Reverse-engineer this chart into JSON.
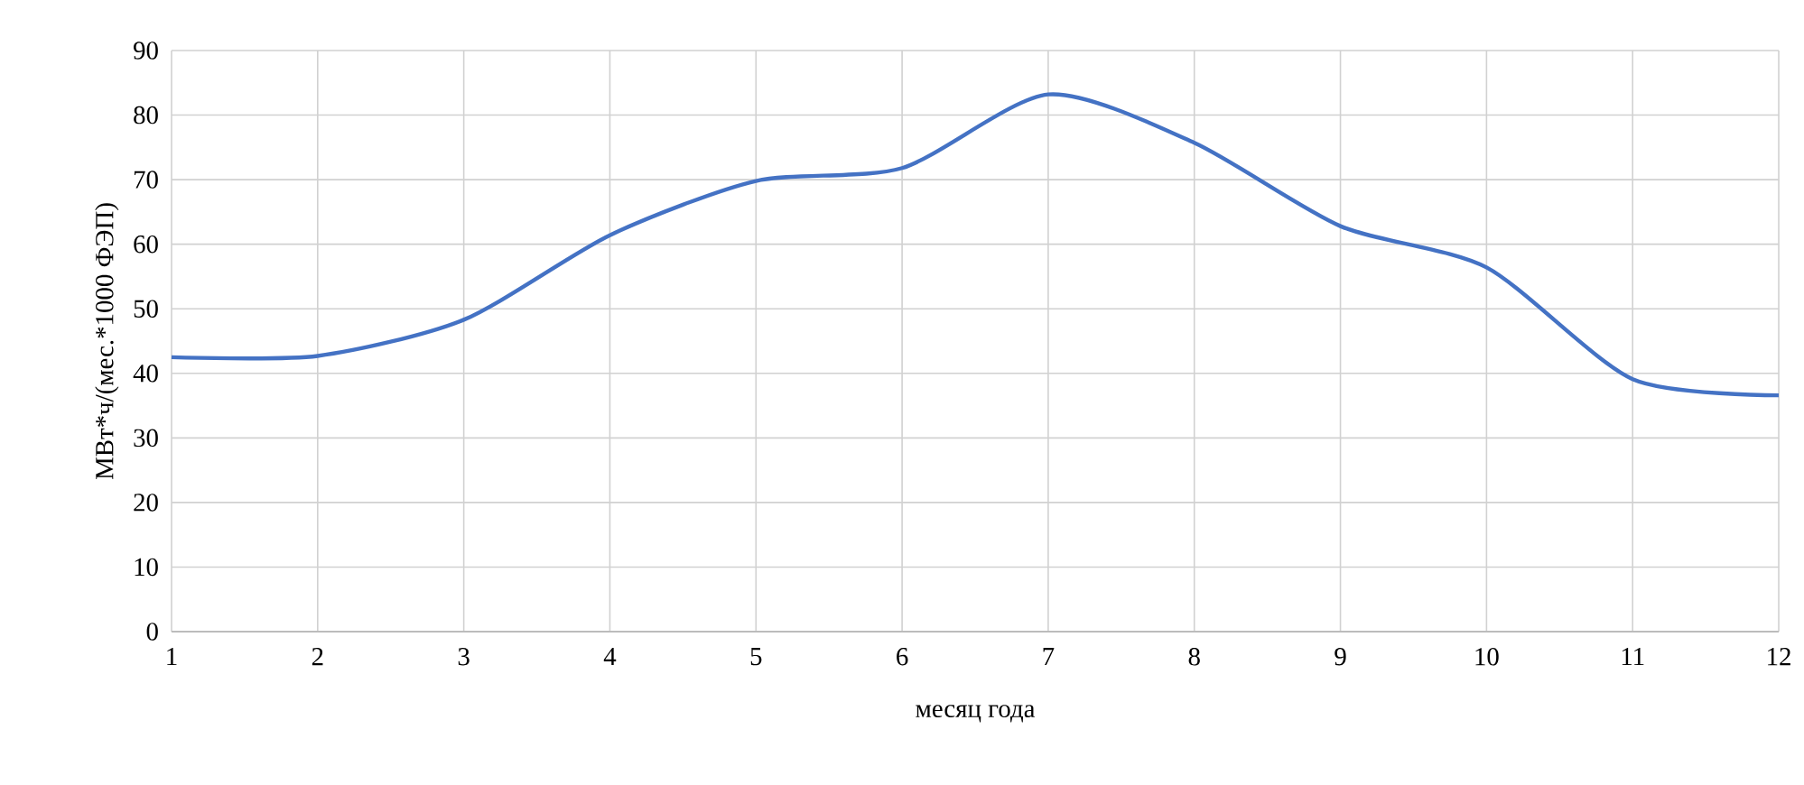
{
  "chart_data": {
    "type": "line",
    "xlabel": "месяц года",
    "ylabel": "МВт*ч/(мес.*1000 ФЭП)",
    "x": [
      1,
      2,
      3,
      4,
      5,
      6,
      7,
      8,
      9,
      10,
      11,
      12
    ],
    "series": [
      {
        "color": "#4472c4",
        "values": [
          42.5,
          42.7,
          48.3,
          61.4,
          69.8,
          71.8,
          83.2,
          75.7,
          62.8,
          56.4,
          39.1,
          36.6
        ]
      }
    ],
    "xlim": [
      1,
      12
    ],
    "xticks": [
      1,
      2,
      3,
      4,
      5,
      6,
      7,
      8,
      9,
      10,
      11,
      12
    ],
    "ylim": [
      0,
      90
    ],
    "yticks": [
      0,
      10,
      20,
      30,
      40,
      50,
      60,
      70,
      80,
      90
    ],
    "grid": true
  }
}
